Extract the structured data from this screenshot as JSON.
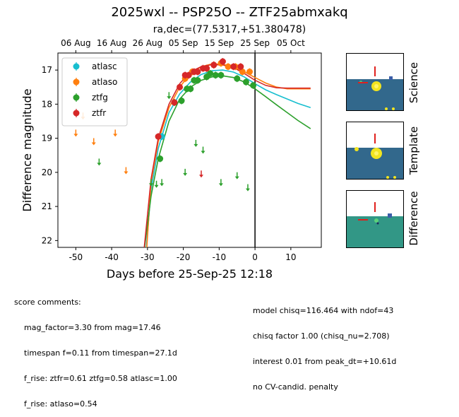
{
  "title": "2025wxl -- PSP25O -- ZTF25abmxakq",
  "subtitle": "ra,dec=(77.5317,+51.380478)",
  "chart_data": {
    "type": "scatter",
    "xlabel": "Days before 25-Sep-25 12:18",
    "ylabel": "Difference magnitude",
    "xlim": [
      -55,
      18.5
    ],
    "ylim": [
      22.2,
      16.5
    ],
    "inverted_y": true,
    "x_ticks": [
      -50,
      -40,
      -30,
      -20,
      -10,
      0,
      10
    ],
    "y_ticks": [
      17,
      18,
      19,
      20,
      21,
      22
    ],
    "top_axis_ticks": [
      {
        "label": "06 Aug",
        "x": -50
      },
      {
        "label": "16 Aug",
        "x": -40
      },
      {
        "label": "26 Aug",
        "x": -30
      },
      {
        "label": "05 Sep",
        "x": -20
      },
      {
        "label": "15 Sep",
        "x": -10
      },
      {
        "label": "25 Sep",
        "x": 0
      },
      {
        "label": "05 Oct",
        "x": 10
      }
    ],
    "vline_x": 0,
    "legend_position": "upper-left",
    "series": [
      {
        "name": "atlasc",
        "color": "#17becf",
        "points": [
          [
            -26.0,
            18.95
          ]
        ],
        "upper_limits": [],
        "model": [
          [
            -30.3,
            22.2
          ],
          [
            -29,
            20.5
          ],
          [
            -27,
            19.3
          ],
          [
            -24,
            18.25
          ],
          [
            -21,
            17.7
          ],
          [
            -18,
            17.35
          ],
          [
            -15,
            17.13
          ],
          [
            -12,
            17.02
          ],
          [
            -9,
            17.0
          ],
          [
            -6,
            17.06
          ],
          [
            -3,
            17.2
          ],
          [
            0,
            17.4
          ],
          [
            3,
            17.58
          ],
          [
            6,
            17.72
          ],
          [
            9,
            17.85
          ],
          [
            12,
            17.98
          ],
          [
            15.5,
            18.1
          ]
        ]
      },
      {
        "name": "atlaso",
        "color": "#ff7f0e",
        "points": [
          [
            -19.5,
            17.25
          ],
          [
            -17.5,
            17.05
          ],
          [
            -13.5,
            16.95
          ],
          [
            -11.5,
            16.85
          ],
          [
            -9.5,
            16.8
          ],
          [
            -7.5,
            16.9
          ],
          [
            -5.5,
            16.9
          ],
          [
            -3.5,
            17.05
          ],
          [
            -1.5,
            17.05
          ]
        ],
        "upper_limits": [
          [
            -50,
            18.85
          ],
          [
            -48,
            18.35
          ],
          [
            -45,
            19.1
          ],
          [
            -39,
            18.85
          ],
          [
            -36,
            19.95
          ]
        ],
        "model": [
          [
            -30.2,
            22.2
          ],
          [
            -29,
            20.3
          ],
          [
            -27,
            19.1
          ],
          [
            -24,
            18.1
          ],
          [
            -21,
            17.5
          ],
          [
            -18,
            17.1
          ],
          [
            -15,
            16.9
          ],
          [
            -12,
            16.82
          ],
          [
            -9,
            16.83
          ],
          [
            -6,
            16.92
          ],
          [
            -3,
            17.05
          ],
          [
            0,
            17.22
          ],
          [
            3,
            17.38
          ],
          [
            6,
            17.5
          ],
          [
            9,
            17.55
          ],
          [
            12,
            17.55
          ],
          [
            15.5,
            17.55
          ]
        ]
      },
      {
        "name": "ztfg",
        "color": "#2ca02c",
        "points": [
          [
            -26.5,
            19.6
          ],
          [
            -22.5,
            17.95
          ],
          [
            -20.5,
            17.9
          ],
          [
            -19.0,
            17.55
          ],
          [
            -18.0,
            17.55
          ],
          [
            -17.0,
            17.3
          ],
          [
            -16.0,
            17.3
          ],
          [
            -13.5,
            17.2
          ],
          [
            -12.5,
            17.1
          ],
          [
            -11.0,
            17.15
          ],
          [
            -9.5,
            17.15
          ],
          [
            -5.0,
            17.25
          ],
          [
            -2.5,
            17.35
          ],
          [
            -0.5,
            17.45
          ]
        ],
        "upper_limits": [
          [
            -43.5,
            19.7
          ],
          [
            -29,
            20.3
          ],
          [
            -27.5,
            20.35
          ],
          [
            -26,
            20.3
          ],
          [
            -24,
            17.75
          ],
          [
            -19.5,
            20.0
          ],
          [
            -16.5,
            19.15
          ],
          [
            -14.5,
            19.35
          ],
          [
            -9.5,
            20.3
          ],
          [
            -5,
            20.1
          ],
          [
            -2,
            20.45
          ]
        ],
        "model": [
          [
            -30.8,
            22.2
          ],
          [
            -29,
            20.7
          ],
          [
            -27,
            19.6
          ],
          [
            -24,
            18.5
          ],
          [
            -21,
            17.85
          ],
          [
            -18,
            17.5
          ],
          [
            -15,
            17.3
          ],
          [
            -12,
            17.2
          ],
          [
            -9,
            17.17
          ],
          [
            -6,
            17.22
          ],
          [
            -3,
            17.35
          ],
          [
            0,
            17.55
          ],
          [
            3,
            17.78
          ],
          [
            6,
            18.02
          ],
          [
            9,
            18.25
          ],
          [
            12,
            18.48
          ],
          [
            15.5,
            18.72
          ]
        ]
      },
      {
        "name": "ztfr",
        "color": "#d62728",
        "points": [
          [
            -27.0,
            18.95
          ],
          [
            -22.5,
            17.95
          ],
          [
            -21.0,
            17.5
          ],
          [
            -19.5,
            17.15
          ],
          [
            -18.5,
            17.15
          ],
          [
            -17.0,
            17.05
          ],
          [
            -16.0,
            17.05
          ],
          [
            -14.5,
            16.95
          ],
          [
            -13.5,
            16.95
          ],
          [
            -11.5,
            16.85
          ],
          [
            -9.0,
            16.75
          ],
          [
            -6.0,
            16.9
          ],
          [
            -4.0,
            16.9
          ]
        ],
        "upper_limits": [
          [
            -15,
            20.05
          ]
        ],
        "model": [
          [
            -30.9,
            22.2
          ],
          [
            -29,
            20.2
          ],
          [
            -27,
            19.0
          ],
          [
            -24,
            18.0
          ],
          [
            -21,
            17.4
          ],
          [
            -18,
            17.05
          ],
          [
            -15,
            16.9
          ],
          [
            -12,
            16.84
          ],
          [
            -9,
            16.85
          ],
          [
            -6,
            16.93
          ],
          [
            -3,
            17.1
          ],
          [
            0,
            17.3
          ],
          [
            3,
            17.45
          ],
          [
            6,
            17.52
          ],
          [
            9,
            17.53
          ],
          [
            12,
            17.53
          ],
          [
            15.5,
            17.53
          ]
        ]
      }
    ]
  },
  "cutouts": [
    {
      "label": "Science"
    },
    {
      "label": "Template"
    },
    {
      "label": "Difference"
    }
  ],
  "comments_left": {
    "header": "score comments:",
    "lines": [
      "mag_factor=3.30 from mag=17.46",
      "timespan f=0.11 from timespan=27.1d",
      "f_rise: ztfr=0.61 ztfg=0.58 atlasc=1.00",
      "f_rise: atlaso=0.54"
    ]
  },
  "comments_right": {
    "lines": [
      "model chisq=116.464 with ndof=43",
      "chisq factor 1.00 (chisq_nu=2.708)",
      "interest 0.01 from peak_dt=+10.61d",
      "no CV-candid. penalty"
    ]
  }
}
